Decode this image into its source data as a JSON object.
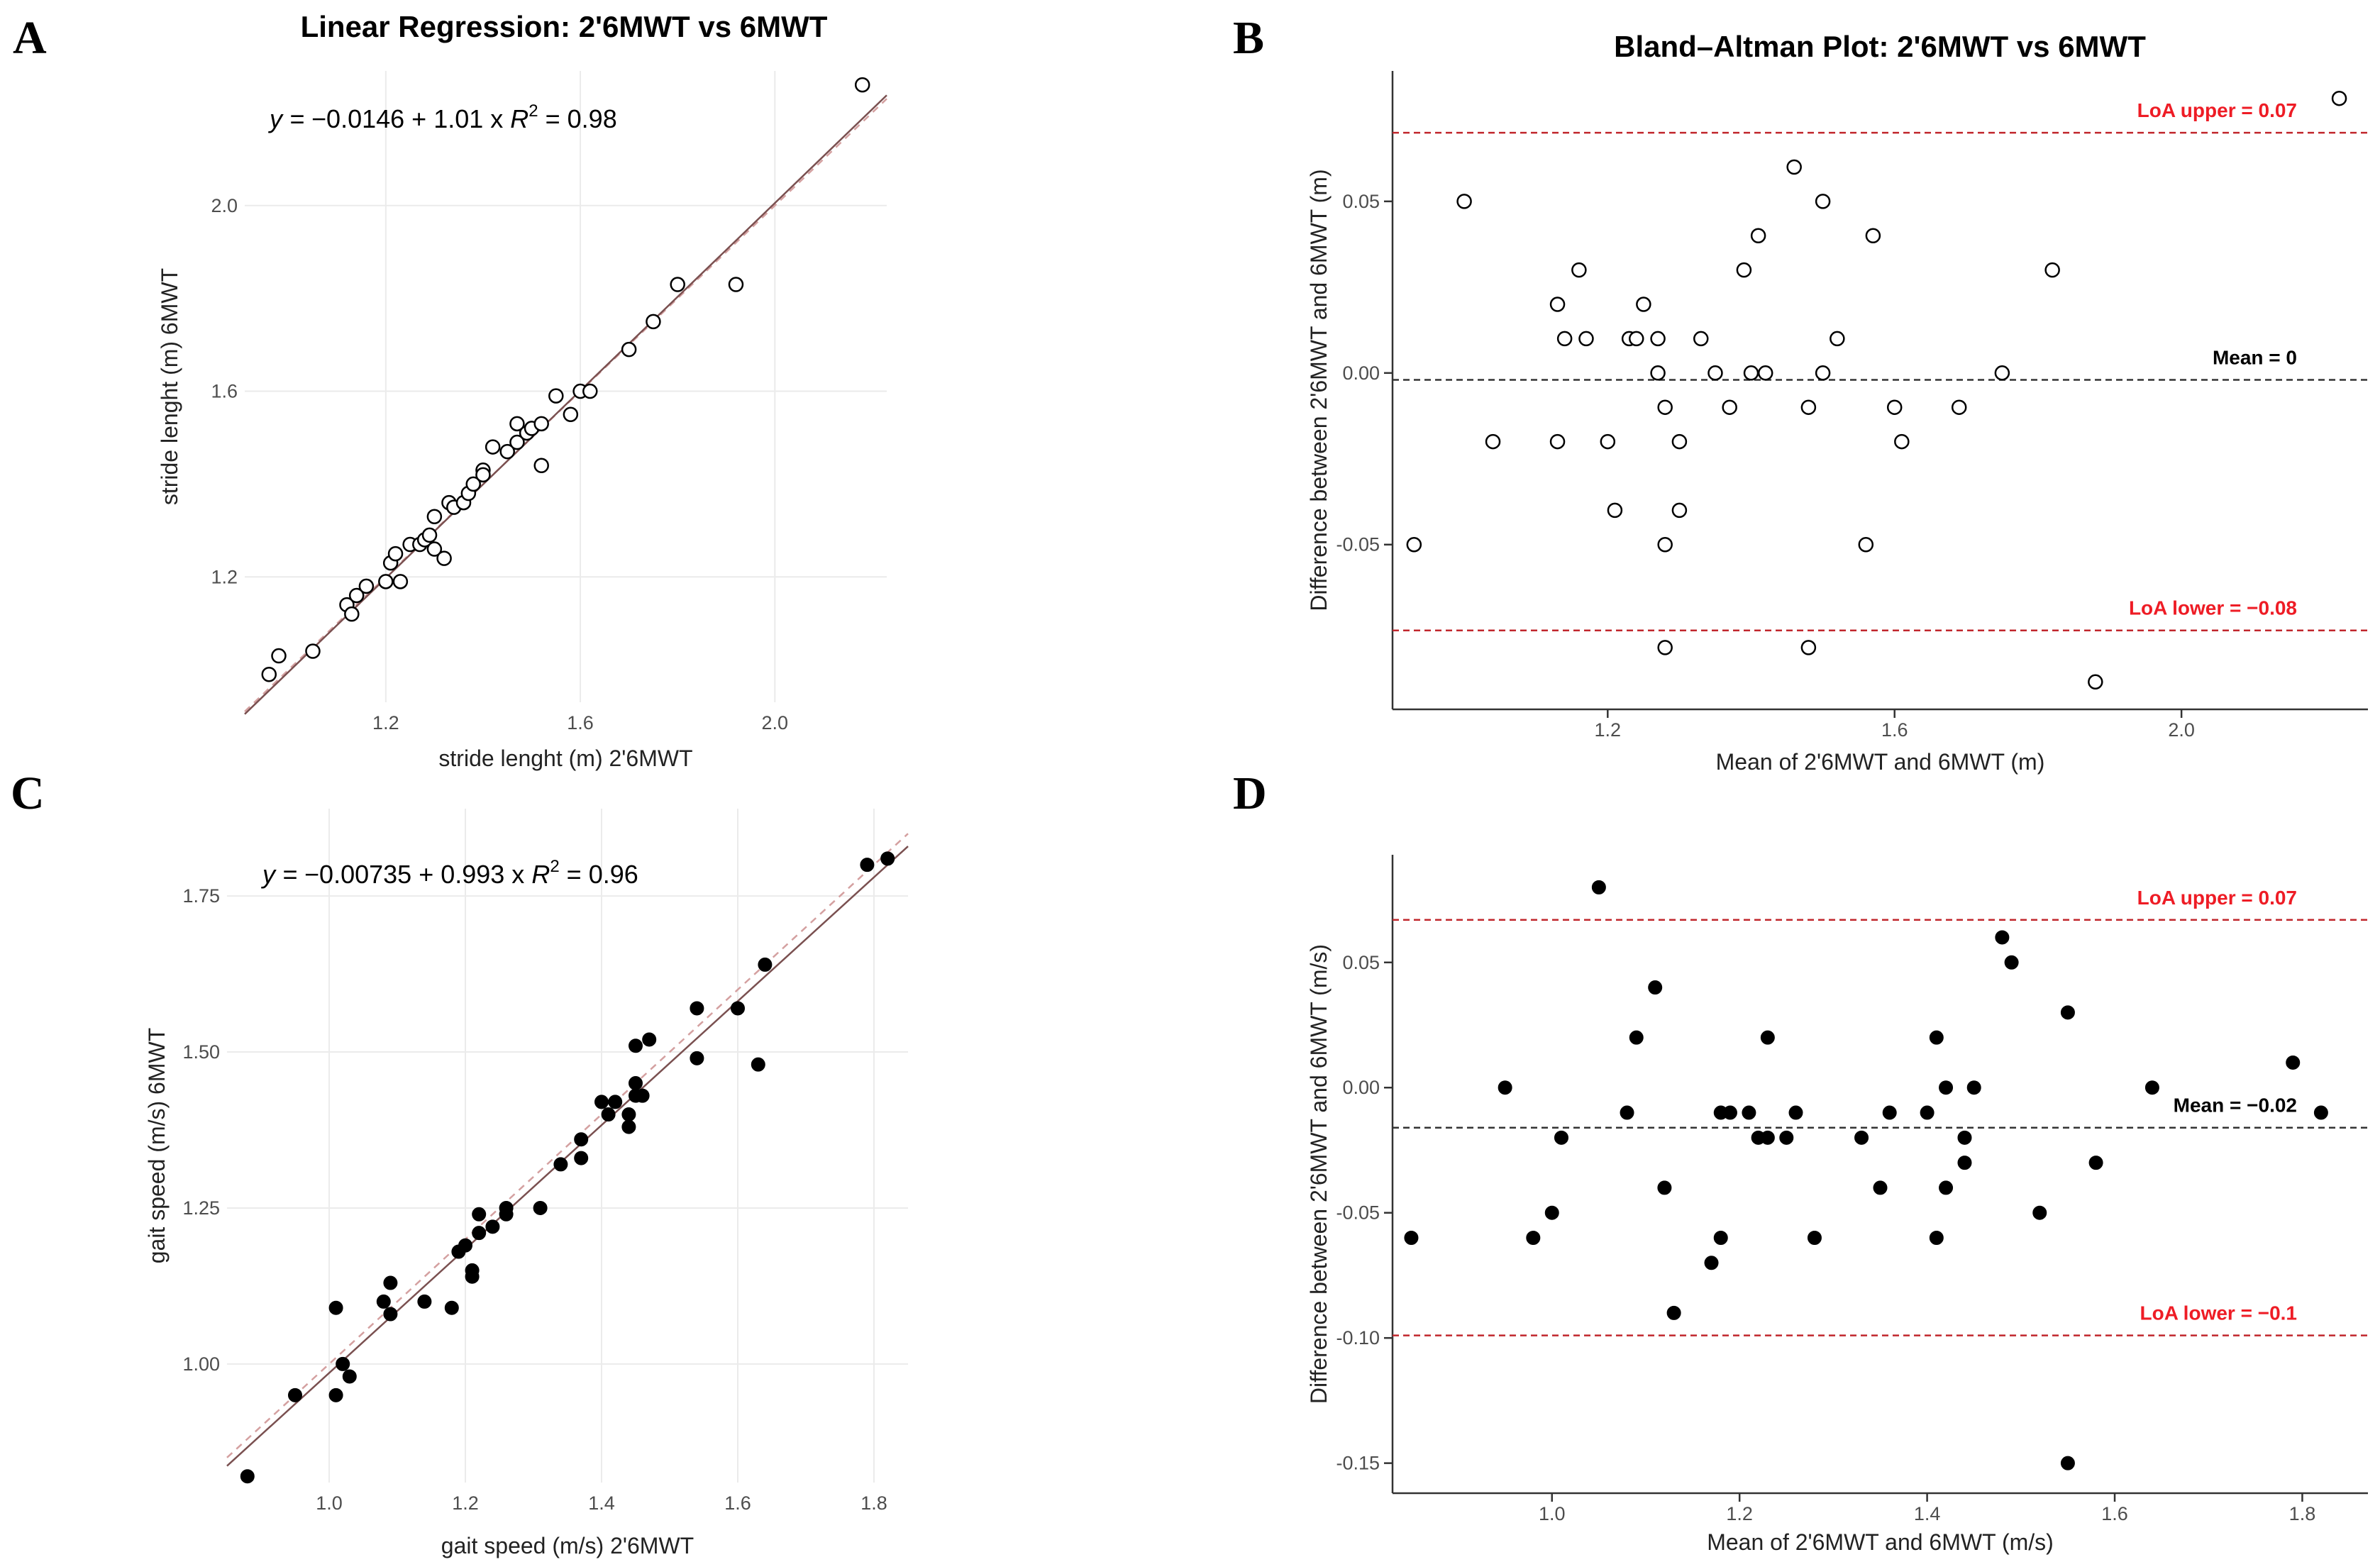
{
  "chart_data": [
    {
      "id": "A",
      "panel": "A",
      "type": "scatter",
      "title": "Linear Regression: 2'6MWT vs 6MWT",
      "xlabel": "stride lenght (m) 2'6MWT",
      "ylabel": "stride lenght (m) 6MWT",
      "xlim": [
        0.91,
        2.23
      ],
      "ylim": [
        0.93,
        2.29
      ],
      "xticks": [
        1.2,
        1.6,
        2.0
      ],
      "xtick_labels": [
        "1.2",
        "1.6",
        "2.0"
      ],
      "yticks": [
        1.2,
        1.6,
        2.0
      ],
      "ytick_labels": [
        "1.2",
        "1.6",
        "2.0"
      ],
      "equation": {
        "lhs": "y = ",
        "body": "−0.0146 + 1.01 x",
        "r2_label": "R",
        "r2_value": " = 0.98"
      },
      "fit_line": {
        "intercept": -0.0146,
        "slope": 1.01
      },
      "identity_line": true,
      "marker": "open-circle",
      "x": [
        0.96,
        0.98,
        1.05,
        1.12,
        1.13,
        1.14,
        1.16,
        1.2,
        1.21,
        1.22,
        1.23,
        1.25,
        1.27,
        1.28,
        1.29,
        1.3,
        1.3,
        1.32,
        1.33,
        1.34,
        1.36,
        1.37,
        1.38,
        1.4,
        1.4,
        1.42,
        1.45,
        1.47,
        1.47,
        1.49,
        1.5,
        1.52,
        1.52,
        1.55,
        1.58,
        1.6,
        1.62,
        1.7,
        1.75,
        1.8,
        1.92,
        2.18
      ],
      "y": [
        0.99,
        1.03,
        1.04,
        1.14,
        1.12,
        1.16,
        1.18,
        1.19,
        1.23,
        1.25,
        1.19,
        1.27,
        1.27,
        1.28,
        1.29,
        1.26,
        1.33,
        1.24,
        1.36,
        1.35,
        1.36,
        1.38,
        1.4,
        1.43,
        1.42,
        1.48,
        1.47,
        1.53,
        1.49,
        1.51,
        1.52,
        1.53,
        1.44,
        1.59,
        1.55,
        1.6,
        1.6,
        1.69,
        1.75,
        1.83,
        1.83,
        2.26
      ]
    },
    {
      "id": "B",
      "panel": "B",
      "type": "scatter",
      "title": "Bland–Altman Plot: 2'6MWT vs 6MWT",
      "xlabel": "Mean of 2'6MWT and 6MWT (m)",
      "ylabel": "Difference between 2'6MWT and 6MWT (m)",
      "xlim": [
        0.9,
        2.26
      ],
      "ylim": [
        -0.098,
        0.088
      ],
      "xticks": [
        1.2,
        1.6,
        2.0
      ],
      "xtick_labels": [
        "1.2",
        "1.6",
        "2.0"
      ],
      "yticks": [
        -0.05,
        0.0,
        0.05
      ],
      "ytick_labels": [
        "-0.05",
        "0.00",
        "0.05"
      ],
      "marker": "open-circle",
      "ref_lines": [
        {
          "value": 0.07,
          "label": "LoA upper = 0.07",
          "color": "#c1272d",
          "label_color": "#ee1c25"
        },
        {
          "value": -0.002,
          "label": "Mean = 0",
          "color": "#333333",
          "label_color": "#000000"
        },
        {
          "value": -0.075,
          "label": "LoA lower = −0.08",
          "color": "#c1272d",
          "label_color": "#ee1c25"
        }
      ],
      "x": [
        0.93,
        1.0,
        1.04,
        1.13,
        1.13,
        1.14,
        1.16,
        1.17,
        1.2,
        1.21,
        1.23,
        1.24,
        1.25,
        1.27,
        1.27,
        1.28,
        1.28,
        1.28,
        1.3,
        1.3,
        1.33,
        1.35,
        1.37,
        1.39,
        1.4,
        1.41,
        1.42,
        1.46,
        1.48,
        1.48,
        1.5,
        1.5,
        1.52,
        1.56,
        1.57,
        1.6,
        1.61,
        1.69,
        1.75,
        1.82,
        1.88,
        2.22
      ],
      "y": [
        -0.05,
        0.05,
        -0.02,
        -0.02,
        0.02,
        0.01,
        0.03,
        0.01,
        -0.02,
        -0.04,
        0.01,
        0.01,
        0.02,
        0.01,
        0.0,
        -0.05,
        -0.01,
        -0.08,
        -0.02,
        -0.04,
        0.01,
        0.0,
        -0.01,
        0.03,
        0.0,
        0.04,
        0.0,
        0.06,
        -0.01,
        -0.08,
        0.05,
        0.0,
        0.01,
        -0.05,
        0.04,
        -0.01,
        -0.02,
        -0.01,
        0.0,
        0.03,
        -0.09,
        0.08
      ]
    },
    {
      "id": "C",
      "panel": "C",
      "type": "scatter",
      "title": "",
      "xlabel": "gait speed (m/s) 2'6MWT",
      "ylabel": "gait speed (m/s) 6MWT",
      "xlim": [
        0.85,
        1.85
      ],
      "ylim": [
        0.81,
        1.89
      ],
      "xticks": [
        1.0,
        1.2,
        1.4,
        1.6,
        1.8
      ],
      "xtick_labels": [
        "1.0",
        "1.2",
        "1.4",
        "1.6",
        "1.8"
      ],
      "yticks": [
        1.0,
        1.25,
        1.5,
        1.75
      ],
      "ytick_labels": [
        "1.00",
        "1.25",
        "1.50",
        "1.75"
      ],
      "equation": {
        "lhs": "y = ",
        "body": "−0.00735 + 0.993 x",
        "r2_label": "R",
        "r2_value": " = 0.96"
      },
      "fit_line": {
        "intercept": -0.00735,
        "slope": 0.993
      },
      "identity_line": true,
      "marker": "filled-circle",
      "x": [
        0.88,
        0.95,
        1.01,
        1.01,
        1.02,
        1.03,
        1.08,
        1.09,
        1.09,
        1.14,
        1.18,
        1.19,
        1.2,
        1.21,
        1.21,
        1.22,
        1.22,
        1.24,
        1.26,
        1.26,
        1.31,
        1.34,
        1.37,
        1.37,
        1.4,
        1.41,
        1.42,
        1.44,
        1.44,
        1.45,
        1.45,
        1.45,
        1.46,
        1.47,
        1.54,
        1.54,
        1.6,
        1.63,
        1.64,
        1.79,
        1.82
      ],
      "y": [
        0.82,
        0.95,
        0.95,
        1.09,
        1.0,
        0.98,
        1.1,
        1.08,
        1.13,
        1.1,
        1.09,
        1.18,
        1.19,
        1.14,
        1.15,
        1.21,
        1.24,
        1.22,
        1.24,
        1.25,
        1.25,
        1.32,
        1.33,
        1.36,
        1.42,
        1.4,
        1.42,
        1.38,
        1.4,
        1.43,
        1.45,
        1.51,
        1.43,
        1.52,
        1.49,
        1.57,
        1.57,
        1.48,
        1.64,
        1.8,
        1.81
      ]
    },
    {
      "id": "D",
      "panel": "D",
      "type": "scatter",
      "title": "",
      "xlabel": "Mean of 2'6MWT and 6MWT (m/s)",
      "ylabel": "Difference between 2'6MWT and 6MWT (m/s)",
      "xlim": [
        0.83,
        1.87
      ],
      "ylim": [
        -0.162,
        0.093
      ],
      "xticks": [
        1.0,
        1.2,
        1.4,
        1.6,
        1.8
      ],
      "xtick_labels": [
        "1.0",
        "1.2",
        "1.4",
        "1.6",
        "1.8"
      ],
      "yticks": [
        -0.15,
        -0.1,
        -0.05,
        0.0,
        0.05
      ],
      "ytick_labels": [
        "-0.15",
        "-0.10",
        "-0.05",
        "0.00",
        "0.05"
      ],
      "marker": "filled-circle",
      "ref_lines": [
        {
          "value": 0.067,
          "label": "LoA upper = 0.07",
          "color": "#c1272d",
          "label_color": "#ee1c25"
        },
        {
          "value": -0.016,
          "label": "Mean = −0.02",
          "color": "#333333",
          "label_color": "#000000"
        },
        {
          "value": -0.099,
          "label": "LoA lower = −0.1",
          "color": "#c1272d",
          "label_color": "#ee1c25"
        }
      ],
      "x": [
        0.85,
        0.95,
        0.98,
        1.0,
        1.01,
        1.05,
        1.08,
        1.09,
        1.11,
        1.12,
        1.13,
        1.17,
        1.18,
        1.18,
        1.19,
        1.21,
        1.22,
        1.23,
        1.23,
        1.25,
        1.26,
        1.28,
        1.33,
        1.35,
        1.36,
        1.4,
        1.41,
        1.41,
        1.42,
        1.42,
        1.44,
        1.44,
        1.45,
        1.48,
        1.49,
        1.52,
        1.55,
        1.55,
        1.58,
        1.64,
        1.79,
        1.82
      ],
      "y": [
        -0.06,
        0.0,
        -0.06,
        -0.05,
        -0.02,
        0.08,
        -0.01,
        0.02,
        0.04,
        -0.04,
        -0.09,
        -0.07,
        -0.06,
        -0.01,
        -0.01,
        -0.01,
        -0.02,
        0.02,
        -0.02,
        -0.02,
        -0.01,
        -0.06,
        -0.02,
        -0.04,
        -0.01,
        -0.01,
        -0.06,
        0.02,
        0.0,
        -0.04,
        -0.02,
        -0.03,
        0.0,
        0.06,
        0.05,
        -0.05,
        0.03,
        -0.15,
        -0.03,
        0.0,
        0.01,
        -0.01
      ]
    }
  ]
}
